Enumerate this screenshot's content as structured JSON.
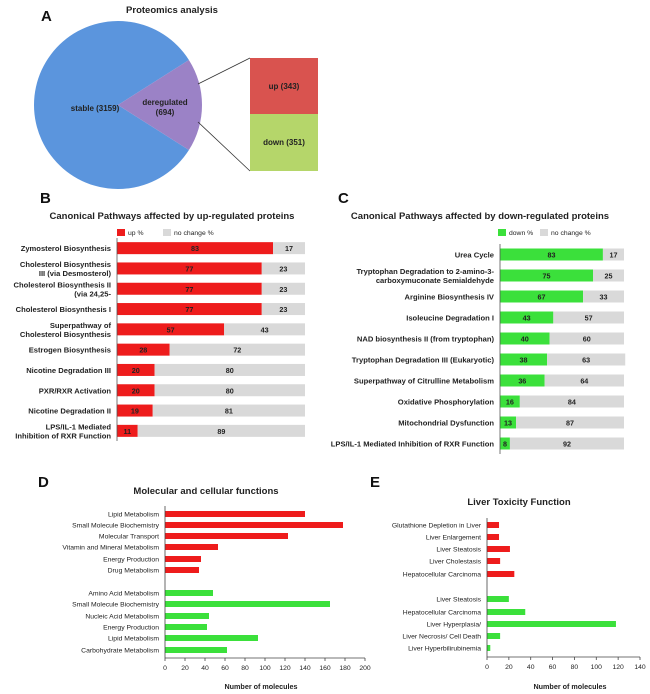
{
  "colors": {
    "red": "#ee1c1c",
    "green": "#3be03b",
    "gray": "#d9d9d9",
    "pie_blue": "#5b95dd",
    "pie_purple": "#9b82c6",
    "up_box": "#d9534f",
    "down_box": "#b5d66a"
  },
  "panel_a": {
    "letter": "A",
    "title": "Proteomics analysis",
    "pie": [
      {
        "label": "stable",
        "value": 3159,
        "display": "stable (3159)"
      },
      {
        "label": "deregulated",
        "value": 694,
        "display_line1": "deregulated",
        "display_line2": "(694)"
      }
    ],
    "breakdown": [
      {
        "label": "up",
        "value": 343,
        "display": "up (343)"
      },
      {
        "label": "down",
        "value": 351,
        "display": "down (351)"
      }
    ]
  },
  "panel_b": {
    "letter": "B",
    "title": "Canonical Pathways affected by up-regulated proteins",
    "legend": [
      "up %",
      "no change %"
    ]
  },
  "panel_c": {
    "letter": "C",
    "title": "Canonical Pathways affected by down-regulated proteins",
    "legend": [
      "down %",
      "no change %"
    ]
  },
  "panel_d": {
    "letter": "D",
    "title": "Molecular and cellular functions",
    "xlabel": "Number of molecules"
  },
  "panel_e": {
    "letter": "E",
    "title": "Liver Toxicity Function",
    "xlabel": "Number of molecules"
  },
  "chart_data": [
    {
      "id": "B",
      "type": "bar",
      "orientation": "horizontal",
      "stacked": true,
      "categories": [
        [
          "Zymosterol Biosynthesis"
        ],
        [
          "Cholesterol Biosynthesis",
          "III (via Desmosterol)"
        ],
        [
          "Cholesterol Biosynthesis II",
          "(via 24,25-"
        ],
        [
          "Cholesterol Biosynthesis I"
        ],
        [
          "Superpathway of",
          "Cholesterol Biosynthesis"
        ],
        [
          "Estrogen Biosynthesis"
        ],
        [
          "Nicotine Degradation III"
        ],
        [
          "PXR/RXR Activation"
        ],
        [
          "Nicotine Degradation II"
        ],
        [
          "LPS/IL-1 Mediated",
          "Inhibition of RXR Function"
        ]
      ],
      "series": [
        {
          "name": "up %",
          "values": [
            83,
            77,
            77,
            77,
            57,
            28,
            20,
            20,
            19,
            11
          ]
        },
        {
          "name": "no change %",
          "values": [
            17,
            23,
            23,
            23,
            43,
            72,
            80,
            80,
            81,
            89
          ]
        }
      ]
    },
    {
      "id": "C",
      "type": "bar",
      "orientation": "horizontal",
      "stacked": true,
      "categories": [
        [
          "Urea Cycle"
        ],
        [
          "Tryptophan Degradation to 2-amino-3-",
          "carboxymuconate Semialdehyde"
        ],
        [
          "Arginine Biosynthesis IV"
        ],
        [
          "Isoleucine Degradation I"
        ],
        [
          "NAD biosynthesis II (from tryptophan)"
        ],
        [
          "Tryptophan Degradation III (Eukaryotic)"
        ],
        [
          "Superpathway of Citrulline Metabolism"
        ],
        [
          "Oxidative Phosphorylation"
        ],
        [
          "Mitochondrial Dysfunction"
        ],
        [
          "LPS/IL-1 Mediated Inhibition of RXR Function"
        ]
      ],
      "series": [
        {
          "name": "down %",
          "values": [
            83,
            75,
            67,
            43,
            40,
            38,
            36,
            16,
            13,
            8
          ]
        },
        {
          "name": "no change %",
          "values": [
            17,
            25,
            33,
            57,
            60,
            63,
            64,
            84,
            87,
            92
          ]
        }
      ]
    },
    {
      "id": "D",
      "type": "bar",
      "orientation": "horizontal",
      "xlim": [
        0,
        200
      ],
      "xticks": [
        0,
        20,
        40,
        60,
        80,
        100,
        120,
        140,
        160,
        180,
        200
      ],
      "groups": [
        {
          "color": "red",
          "categories": [
            "Lipid Metabolism",
            "Small Molecule Biochemistry",
            "Molecular Transport",
            "Vitamin and Mineral Metabolism",
            "Energy Production",
            "Drug Metabolism"
          ],
          "values": [
            140,
            178,
            123,
            53,
            36,
            34
          ]
        },
        {
          "color": "green",
          "categories": [
            "Amino Acid Metabolism",
            "Small Molecule Biochemistry",
            "Nucleic Acid Metabolism",
            "Energy Production",
            "Lipid Metabolism",
            "Carbohydrate Metabolism"
          ],
          "values": [
            48,
            165,
            44,
            42,
            93,
            62
          ]
        }
      ],
      "xlabel": "Number of molecules"
    },
    {
      "id": "E",
      "type": "bar",
      "orientation": "horizontal",
      "xlim": [
        0,
        140
      ],
      "xticks": [
        0,
        20,
        40,
        60,
        80,
        100,
        120,
        140
      ],
      "groups": [
        {
          "color": "red",
          "categories": [
            "Glutathione Depletion in Liver",
            "Liver Enlargement",
            "Liver Steatosis",
            "Liver Cholestasis",
            "Hepatocellular Carcinoma"
          ],
          "values": [
            11,
            11,
            21,
            12,
            25
          ]
        },
        {
          "color": "green",
          "categories": [
            "Liver Steatosis",
            "Hepatocellular Carcinoma",
            "Liver Hyperplasia/",
            "Liver Necrosis/ Cell Death",
            "Liver Hyperbilirubinemia"
          ],
          "values": [
            20,
            35,
            118,
            12,
            3
          ]
        }
      ],
      "xlabel": "Number of molecules"
    }
  ]
}
